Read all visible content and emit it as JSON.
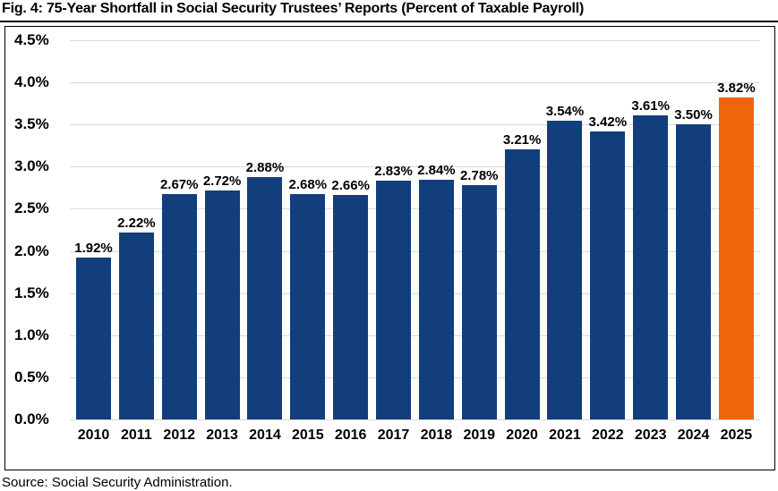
{
  "title": "Fig. 4: 75-Year Shortfall in Social Security Trustees’ Reports (Percent of Taxable Payroll)",
  "source": "Source: Social Security Administration.",
  "colors": {
    "bar": "#123e7c",
    "highlight": "#f0650c",
    "gridline": "#d9d9d9",
    "text": "#000000"
  },
  "chart_data": {
    "type": "bar",
    "title": "Fig. 4: 75-Year Shortfall in Social Security Trustees’ Reports (Percent of Taxable Payroll)",
    "categories": [
      "2010",
      "2011",
      "2012",
      "2013",
      "2014",
      "2015",
      "2016",
      "2017",
      "2018",
      "2019",
      "2020",
      "2021",
      "2022",
      "2023",
      "2024",
      "2025"
    ],
    "values": [
      1.92,
      2.22,
      2.67,
      2.72,
      2.88,
      2.68,
      2.66,
      2.83,
      2.84,
      2.78,
      3.21,
      3.54,
      3.42,
      3.61,
      3.5,
      3.82
    ],
    "value_labels": [
      "1.92%",
      "2.22%",
      "2.67%",
      "2.72%",
      "2.88%",
      "2.68%",
      "2.66%",
      "2.83%",
      "2.84%",
      "2.78%",
      "3.21%",
      "3.54%",
      "3.42%",
      "3.61%",
      "3.50%",
      "3.82%"
    ],
    "xlabel": "",
    "ylabel": "",
    "ylim": [
      0,
      4.5
    ],
    "ytick_step": 0.5,
    "yticks": [
      "0.0%",
      "0.5%",
      "1.0%",
      "1.5%",
      "2.0%",
      "2.5%",
      "3.0%",
      "3.5%",
      "4.0%",
      "4.5%"
    ],
    "grid": true,
    "legend": "none",
    "bar_color": "#123e7c",
    "highlight_category": "2025",
    "highlight_color": "#f0650c"
  }
}
